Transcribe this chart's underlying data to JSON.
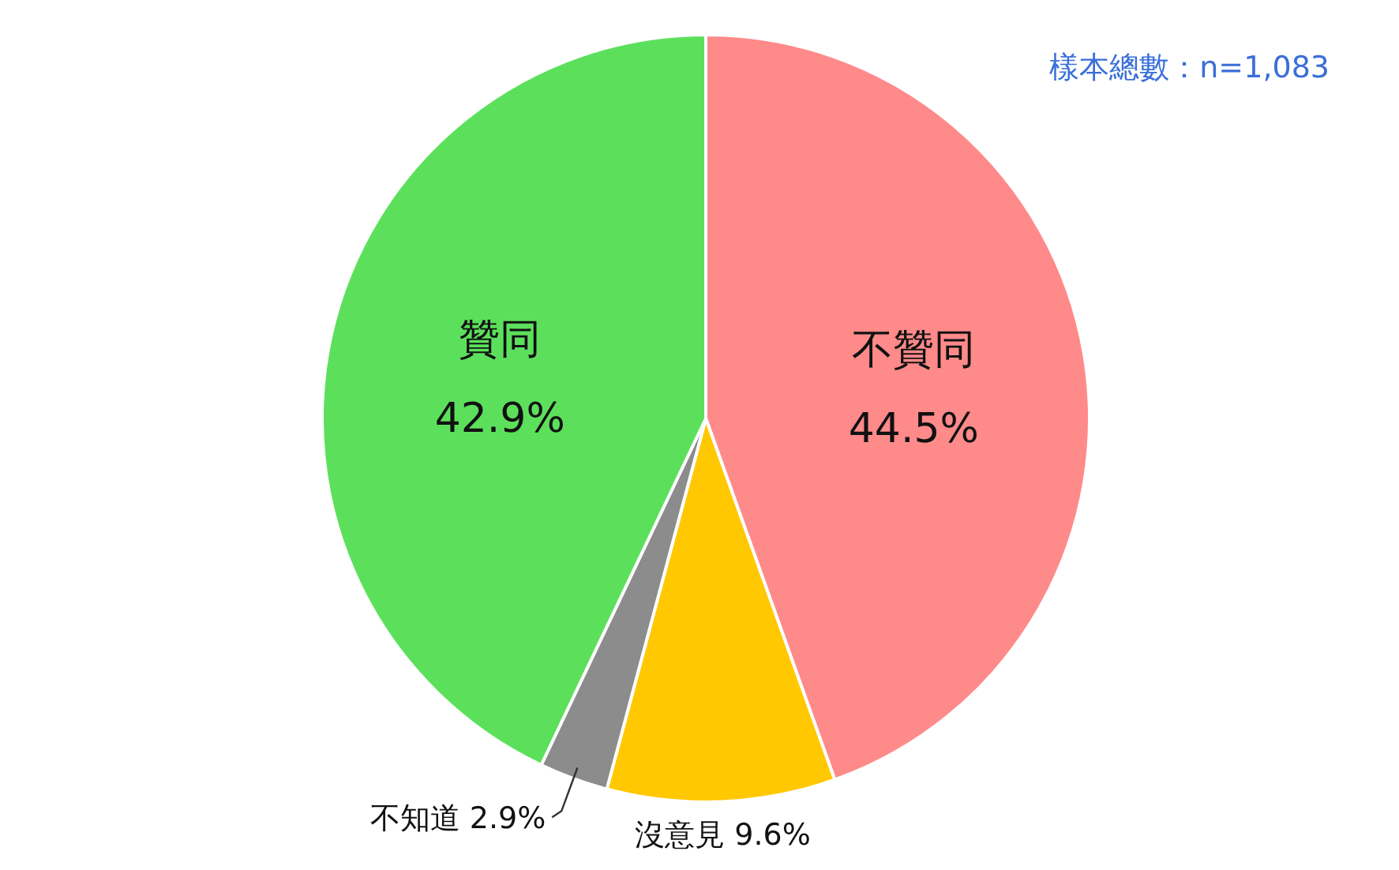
{
  "chart_data": {
    "type": "pie",
    "categories": [
      "不贊同",
      "沒意見",
      "不知道",
      "贊同"
    ],
    "values": [
      44.5,
      9.6,
      2.9,
      42.9
    ],
    "colors": [
      "#ff8a8a",
      "#ffc800",
      "#8c8c8c",
      "#5ce05c"
    ],
    "value_labels": [
      "44.5%",
      "9.6%",
      "2.9%",
      "42.9%"
    ],
    "annotations": [
      "樣本總數：n=1,083"
    ]
  }
}
